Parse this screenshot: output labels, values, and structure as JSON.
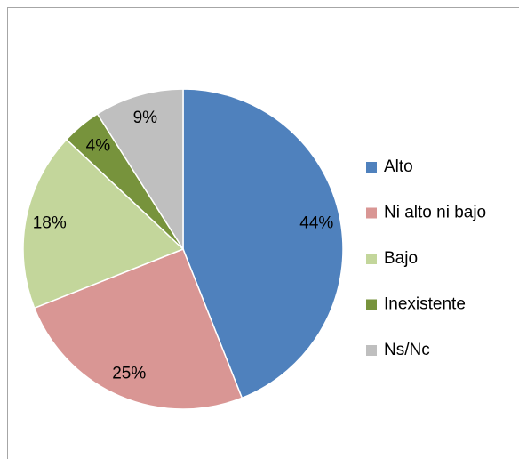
{
  "chart_data": {
    "type": "pie",
    "categories": [
      "Alto",
      "Ni alto ni bajo",
      "Bajo",
      "Inexistente",
      "Ns/Nc"
    ],
    "values": [
      44,
      25,
      18,
      4,
      9
    ],
    "value_labels": [
      "44%",
      "25%",
      "18%",
      "4%",
      "9%"
    ],
    "colors": [
      "#4f81bd",
      "#d99694",
      "#c3d69b",
      "#77933c",
      "#bfbfbf"
    ],
    "legend": "right"
  }
}
